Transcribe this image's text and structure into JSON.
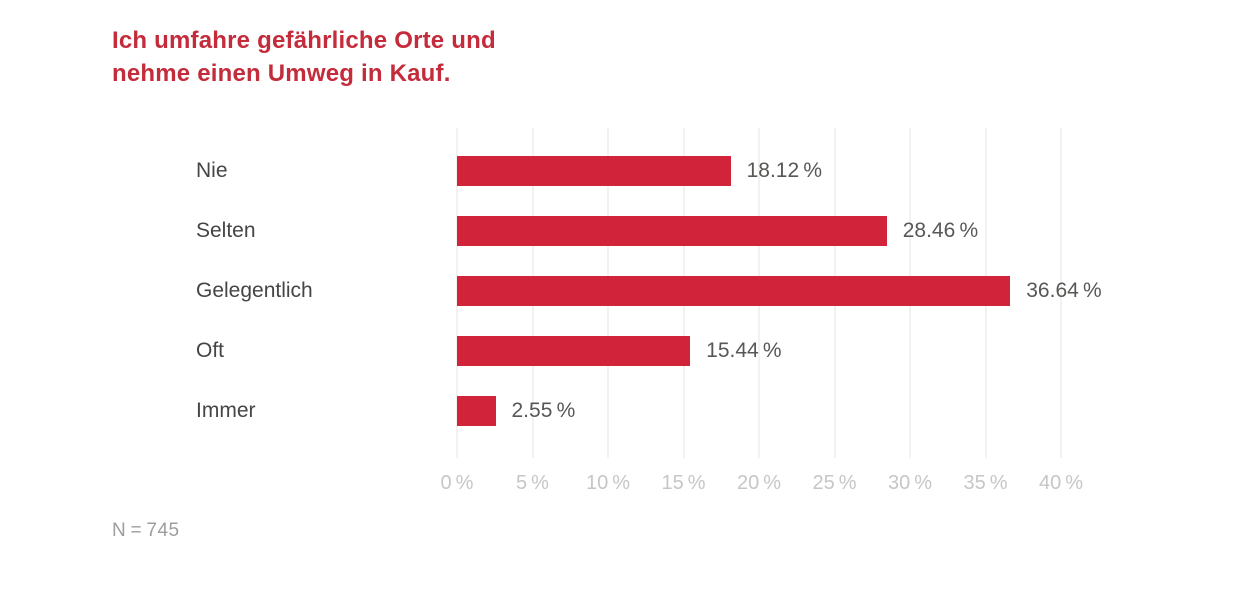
{
  "header": {
    "title_lines": [
      "Ich umfahre gefährliche Orte und",
      "nehme einen Umweg in Kauf."
    ]
  },
  "colors": {
    "title": "#c42b3b",
    "bar": "#d12339",
    "gridline": "#e4e4e3",
    "category_label": "#454544",
    "value_label": "#575756",
    "tick_label": "#c6c6c5",
    "note": "#9d9d9c"
  },
  "chart_data": {
    "type": "bar",
    "orientation": "horizontal",
    "title": "Ich umfahre gefährliche Orte und nehme einen Umweg in Kauf.",
    "categories": [
      "Nie",
      "Selten",
      "Gelegentlich",
      "Oft",
      "Immer"
    ],
    "values": [
      18.12,
      28.46,
      36.64,
      15.44,
      2.55
    ],
    "value_labels": [
      "18.12 %",
      "28.46 %",
      "36.64 %",
      "15.44 %",
      "2.55 %"
    ],
    "xlabel": "",
    "ylabel": "",
    "xlim": [
      0,
      40
    ],
    "xticks": [
      0,
      5,
      10,
      15,
      20,
      25,
      30,
      35,
      40
    ],
    "xtick_labels": [
      "0 %",
      "5 %",
      "10 %",
      "15 %",
      "20 %",
      "25 %",
      "30 %",
      "35 %",
      "40 %"
    ],
    "grid": "vertical",
    "legend": "none"
  },
  "footer": {
    "note": "N = 745"
  }
}
